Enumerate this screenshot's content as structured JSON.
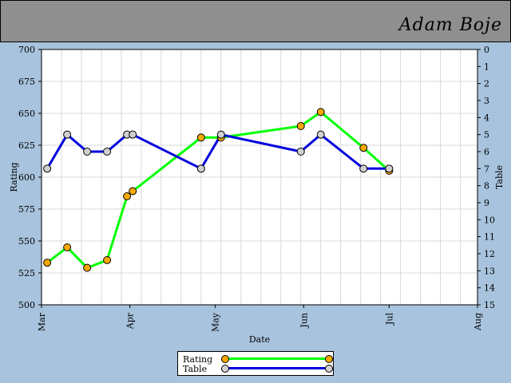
{
  "header": {
    "name": "Adam Boje"
  },
  "colors": {
    "background": "#a7c3dd",
    "header": "#8f8f8f",
    "plot_background": "#ffffff",
    "grid": "#d8d8d8",
    "rating_line": "#00ff00",
    "rating_marker": "#f5a800",
    "table_line": "#0000dd",
    "table_marker": "#d0d0d0"
  },
  "chart_data": {
    "type": "line",
    "xlabel": "Date",
    "ylabel": "Rating",
    "ylabel_right": "Table",
    "x_ticks": [
      "Mar",
      "Apr",
      "May",
      "Jun",
      "Jul",
      "Aug"
    ],
    "x_tick_dates": [
      "2014-03-01",
      "2014-04-01",
      "2014-05-01",
      "2014-06-01",
      "2014-07-01",
      "2014-08-01"
    ],
    "xlim": [
      "2014-03-01",
      "2014-08-01"
    ],
    "ylim": [
      500,
      700
    ],
    "yticks": [
      500,
      525,
      550,
      575,
      600,
      625,
      650,
      675,
      700
    ],
    "y2lim": [
      15,
      0
    ],
    "y2ticks": [
      0,
      1,
      2,
      3,
      4,
      5,
      6,
      7,
      8,
      9,
      10,
      11,
      12,
      13,
      14,
      15
    ],
    "y2_inverted": true,
    "grid": true,
    "legend_position": "bottom-center",
    "series": [
      {
        "name": "Rating",
        "axis": "left",
        "points": [
          {
            "x": "2014-03-03",
            "y": 533
          },
          {
            "x": "2014-03-10",
            "y": 545
          },
          {
            "x": "2014-03-17",
            "y": 529
          },
          {
            "x": "2014-03-24",
            "y": 535
          },
          {
            "x": "2014-03-31",
            "y": 585
          },
          {
            "x": "2014-04-02",
            "y": 589
          },
          {
            "x": "2014-04-26",
            "y": 631
          },
          {
            "x": "2014-05-03",
            "y": 631
          },
          {
            "x": "2014-05-31",
            "y": 640
          },
          {
            "x": "2014-06-07",
            "y": 651
          },
          {
            "x": "2014-06-22",
            "y": 623
          },
          {
            "x": "2014-07-01",
            "y": 605
          }
        ]
      },
      {
        "name": "Table",
        "axis": "right",
        "points": [
          {
            "x": "2014-03-03",
            "y": 7
          },
          {
            "x": "2014-03-10",
            "y": 5
          },
          {
            "x": "2014-03-17",
            "y": 6
          },
          {
            "x": "2014-03-24",
            "y": 6
          },
          {
            "x": "2014-03-31",
            "y": 5
          },
          {
            "x": "2014-04-02",
            "y": 5
          },
          {
            "x": "2014-04-26",
            "y": 7
          },
          {
            "x": "2014-05-03",
            "y": 5
          },
          {
            "x": "2014-05-31",
            "y": 6
          },
          {
            "x": "2014-06-07",
            "y": 5
          },
          {
            "x": "2014-06-22",
            "y": 7
          },
          {
            "x": "2014-07-01",
            "y": 7
          }
        ]
      }
    ]
  }
}
